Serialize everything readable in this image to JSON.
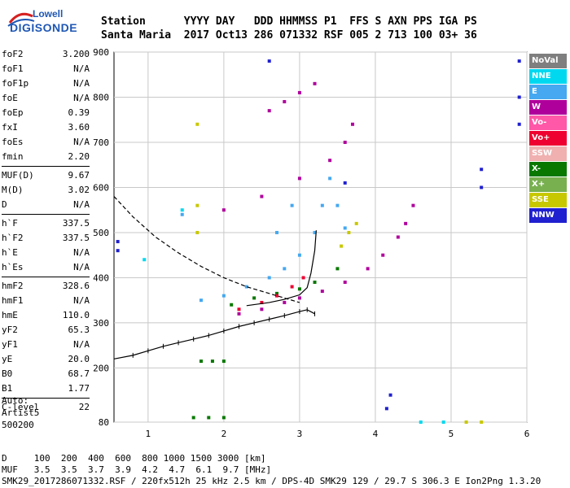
{
  "logo": {
    "brand_top": "Lowell",
    "brand_bottom": "DIGISONDE"
  },
  "header": {
    "line1": "Station      YYYY DAY   DDD HHMMSS P1  FFS S AXN PPS IGA PS",
    "line2": "Santa Maria  2017 Oct13 286 071332 RSF 005 2 713 100 03+ 36"
  },
  "params": [
    {
      "name": "foF2",
      "value": "3.200"
    },
    {
      "name": "foF1",
      "value": "N/A"
    },
    {
      "name": "foF1p",
      "value": "N/A"
    },
    {
      "name": "foE",
      "value": "N/A"
    },
    {
      "name": "foEp",
      "value": "0.39"
    },
    {
      "name": "fxI",
      "value": "3.60"
    },
    {
      "name": "foEs",
      "value": "N/A"
    },
    {
      "name": "fmin",
      "value": "2.20"
    },
    {
      "name": "MUF(D)",
      "value": "9.67"
    },
    {
      "name": "M(D)",
      "value": "3.02"
    },
    {
      "name": "D",
      "value": "N/A"
    },
    {
      "name": "h`F",
      "value": "337.5"
    },
    {
      "name": "h`F2",
      "value": "337.5"
    },
    {
      "name": "h`E",
      "value": "N/A"
    },
    {
      "name": "h`Es",
      "value": "N/A"
    },
    {
      "name": "hmF2",
      "value": "328.6"
    },
    {
      "name": "hmF1",
      "value": "N/A"
    },
    {
      "name": "hmE",
      "value": "110.0"
    },
    {
      "name": "yF2",
      "value": "65.3"
    },
    {
      "name": "yF1",
      "value": "N/A"
    },
    {
      "name": "yE",
      "value": "20.0"
    },
    {
      "name": "B0",
      "value": "68.7"
    },
    {
      "name": "B1",
      "value": "1.77"
    },
    {
      "name": "C-level",
      "value": "22"
    }
  ],
  "auto": {
    "line1": "Auto:",
    "line2": "Artist5",
    "line3": "500200"
  },
  "legend": [
    {
      "label": "NoVal",
      "color": "#7f7f7f"
    },
    {
      "label": "NNE",
      "color": "#00d8f0"
    },
    {
      "label": "E",
      "color": "#45a8f0"
    },
    {
      "label": "W",
      "color": "#b0009c"
    },
    {
      "label": "Vo-",
      "color": "#ff58a8"
    },
    {
      "label": "Vo+",
      "color": "#ee0030"
    },
    {
      "label": "SSW",
      "color": "#f0b0b0"
    },
    {
      "label": "X-",
      "color": "#087800"
    },
    {
      "label": "X+",
      "color": "#78b050"
    },
    {
      "label": "SSE",
      "color": "#c8c800"
    },
    {
      "label": "NNW",
      "color": "#2020d0"
    }
  ],
  "footer": {
    "line1": "D     100  200  400  600  800 1000 1500 3000 [km]",
    "line2": "MUF   3.5  3.5  3.7  3.9  4.2  4.7  6.1  9.7 [MHz]",
    "line3": "SMK29_2017286071332.RSF / 220fx512h 25 kHz 2.5 km / DPS-4D SMK29 129 / 29.7 S 306.3 E Ion2Png 1.3.20"
  },
  "chart_data": {
    "type": "scatter",
    "title": "",
    "xlabel": "",
    "ylabel": "",
    "xlim": [
      0.55,
      6.0
    ],
    "ylim": [
      80,
      900
    ],
    "xticks": [
      1,
      2,
      3,
      4,
      5,
      6
    ],
    "yticks": [
      80,
      200,
      300,
      400,
      500,
      600,
      700,
      800,
      900
    ],
    "grid": true,
    "legend_position": "right",
    "series": [
      {
        "name": "W",
        "color": "#b0009c",
        "points": [
          [
            2.2,
            320
          ],
          [
            2.5,
            330
          ],
          [
            2.8,
            345
          ],
          [
            3.0,
            355
          ],
          [
            3.3,
            370
          ],
          [
            3.6,
            390
          ],
          [
            3.9,
            420
          ],
          [
            4.1,
            450
          ],
          [
            4.3,
            490
          ],
          [
            4.4,
            520
          ],
          [
            4.5,
            560
          ],
          [
            2.0,
            550
          ],
          [
            2.5,
            580
          ],
          [
            3.0,
            620
          ],
          [
            3.4,
            660
          ],
          [
            3.6,
            700
          ],
          [
            3.7,
            740
          ],
          [
            2.6,
            770
          ],
          [
            2.8,
            790
          ],
          [
            3.0,
            810
          ],
          [
            3.2,
            830
          ]
        ]
      },
      {
        "name": "E",
        "color": "#45a8f0",
        "points": [
          [
            1.7,
            350
          ],
          [
            2.0,
            360
          ],
          [
            2.3,
            380
          ],
          [
            2.6,
            400
          ],
          [
            2.8,
            420
          ],
          [
            3.0,
            450
          ],
          [
            3.2,
            500
          ],
          [
            3.3,
            560
          ],
          [
            3.4,
            620
          ],
          [
            3.5,
            560
          ],
          [
            3.6,
            510
          ],
          [
            2.7,
            500
          ],
          [
            2.9,
            560
          ],
          [
            1.45,
            540
          ]
        ]
      },
      {
        "name": "X-",
        "color": "#087800",
        "points": [
          [
            2.1,
            340
          ],
          [
            2.4,
            355
          ],
          [
            2.7,
            365
          ],
          [
            3.0,
            375
          ],
          [
            3.2,
            390
          ],
          [
            3.5,
            420
          ],
          [
            1.7,
            215
          ],
          [
            1.85,
            215
          ],
          [
            2.0,
            215
          ],
          [
            1.6,
            90
          ],
          [
            1.8,
            90
          ],
          [
            2.0,
            90
          ]
        ]
      },
      {
        "name": "SSE",
        "color": "#c8c800",
        "points": [
          [
            1.65,
            500
          ],
          [
            1.65,
            560
          ],
          [
            1.65,
            740
          ],
          [
            3.55,
            470
          ],
          [
            3.65,
            500
          ],
          [
            3.75,
            520
          ],
          [
            5.2,
            80
          ],
          [
            5.4,
            80
          ]
        ]
      },
      {
        "name": "Vo+",
        "color": "#ee0030",
        "points": [
          [
            2.2,
            330
          ],
          [
            2.5,
            345
          ],
          [
            2.7,
            360
          ],
          [
            2.9,
            380
          ],
          [
            3.05,
            400
          ]
        ]
      },
      {
        "name": "NNW",
        "color": "#2020d0",
        "points": [
          [
            0.6,
            480
          ],
          [
            0.6,
            460
          ],
          [
            2.6,
            880
          ],
          [
            3.6,
            610
          ],
          [
            5.4,
            640
          ],
          [
            5.4,
            600
          ],
          [
            5.9,
            880
          ],
          [
            5.9,
            800
          ],
          [
            5.9,
            740
          ],
          [
            4.15,
            110
          ],
          [
            4.2,
            140
          ]
        ]
      },
      {
        "name": "NNE",
        "color": "#00d8f0",
        "points": [
          [
            0.95,
            440
          ],
          [
            1.45,
            550
          ],
          [
            4.6,
            80
          ],
          [
            4.9,
            80
          ]
        ]
      }
    ],
    "trace_x": [
      [
        0.55,
        220
      ],
      [
        0.8,
        228
      ],
      [
        1.0,
        238
      ],
      [
        1.2,
        248
      ],
      [
        1.4,
        256
      ],
      [
        1.6,
        264
      ],
      [
        1.8,
        272
      ],
      [
        2.0,
        282
      ],
      [
        2.2,
        292
      ],
      [
        2.4,
        300
      ],
      [
        2.6,
        308
      ],
      [
        2.8,
        316
      ],
      [
        3.0,
        325
      ],
      [
        3.1,
        329
      ],
      [
        3.2,
        320
      ]
    ],
    "trace_o": [
      [
        2.3,
        338
      ],
      [
        2.6,
        345
      ],
      [
        2.8,
        352
      ],
      [
        3.0,
        362
      ],
      [
        3.1,
        378
      ],
      [
        3.15,
        410
      ],
      [
        3.2,
        460
      ],
      [
        3.22,
        505
      ]
    ],
    "profile": [
      [
        0.55,
        580
      ],
      [
        0.8,
        535
      ],
      [
        1.1,
        490
      ],
      [
        1.4,
        455
      ],
      [
        1.7,
        425
      ],
      [
        2.0,
        400
      ],
      [
        2.3,
        380
      ],
      [
        2.6,
        365
      ],
      [
        2.8,
        355
      ],
      [
        3.0,
        345
      ]
    ]
  }
}
